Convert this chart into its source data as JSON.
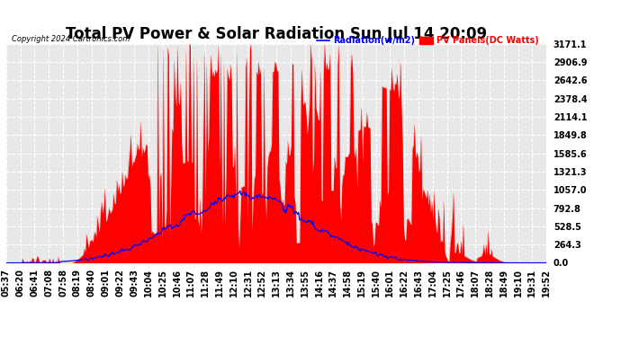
{
  "title": "Total PV Power & Solar Radiation Sun Jul 14 20:09",
  "copyright": "Copyright 2024 Cartronics.com",
  "legend_radiation": "Radiation(w/m2)",
  "legend_pv": "PV Panels(DC Watts)",
  "ylabel_values": [
    0.0,
    264.3,
    528.5,
    792.8,
    1057.0,
    1321.3,
    1585.6,
    1849.8,
    2114.1,
    2378.4,
    2642.6,
    2906.9,
    3171.1
  ],
  "ylim": [
    0,
    3171.1
  ],
  "background_color": "#ffffff",
  "plot_bg_color": "#e8e8e8",
  "grid_color": "#d0d0d0",
  "pv_color": "#ff0000",
  "radiation_color": "#0000ff",
  "title_fontsize": 12,
  "tick_fontsize": 7,
  "n_points": 500,
  "time_labels": [
    "05:37",
    "06:20",
    "06:41",
    "07:08",
    "07:58",
    "08:19",
    "08:40",
    "09:01",
    "09:22",
    "09:43",
    "10:04",
    "10:25",
    "10:46",
    "11:07",
    "11:28",
    "11:49",
    "12:10",
    "12:31",
    "12:52",
    "13:13",
    "13:34",
    "13:55",
    "14:16",
    "14:37",
    "14:58",
    "15:19",
    "15:40",
    "16:01",
    "16:22",
    "16:43",
    "17:04",
    "17:25",
    "17:46",
    "18:07",
    "18:28",
    "18:49",
    "19:10",
    "19:31",
    "19:52"
  ]
}
